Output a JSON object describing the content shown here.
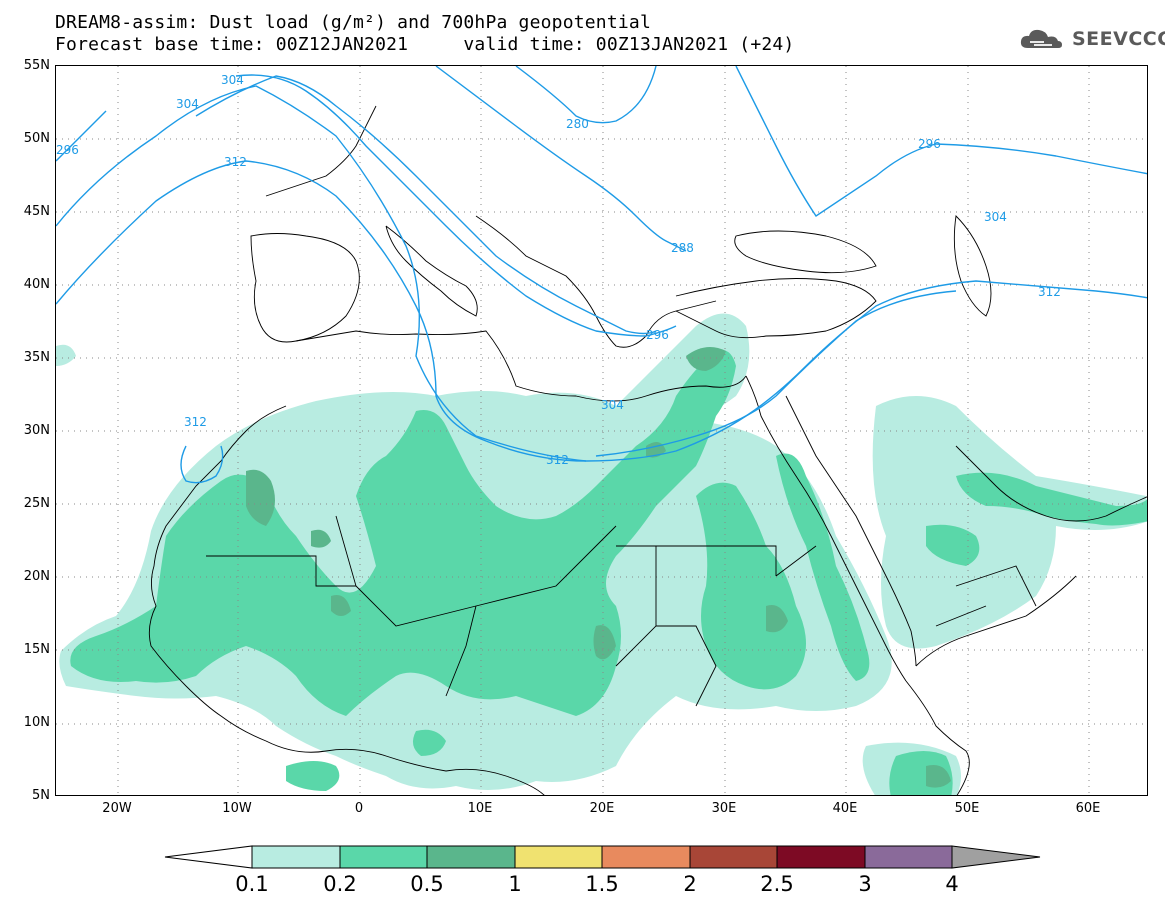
{
  "header": {
    "title_line1": "DREAM8-assim: Dust load (g/m²) and 700hPa geopotential",
    "title_line2": "Forecast base time: 00Z12JAN2021     valid time: 00Z13JAN2021 (+24)",
    "logo_text": "SEEVCCC"
  },
  "map": {
    "lat_labels": [
      "55N",
      "50N",
      "45N",
      "40N",
      "35N",
      "30N",
      "25N",
      "20N",
      "15N",
      "10N",
      "5N"
    ],
    "lon_labels": [
      "20W",
      "10W",
      "0",
      "10E",
      "20E",
      "30E",
      "40E",
      "50E",
      "60E"
    ],
    "contour_labels": [
      "304",
      "304",
      "296",
      "312",
      "280",
      "296",
      "304",
      "288",
      "312",
      "296",
      "312",
      "304",
      "312"
    ],
    "contour_color": "#1e9be6",
    "coast_color": "#000000",
    "grid_color": "#888888"
  },
  "colorbar": {
    "labels": [
      "0.1",
      "0.2",
      "0.5",
      "1",
      "1.5",
      "2",
      "2.5",
      "3",
      "4"
    ],
    "colors": [
      "#ffffff",
      "#b8ece1",
      "#5ad7a9",
      "#5ab68c",
      "#f0e270",
      "#e88a5e",
      "#a84637",
      "#7d0a24",
      "#8a6a9a",
      "#a0a0a0"
    ]
  }
}
